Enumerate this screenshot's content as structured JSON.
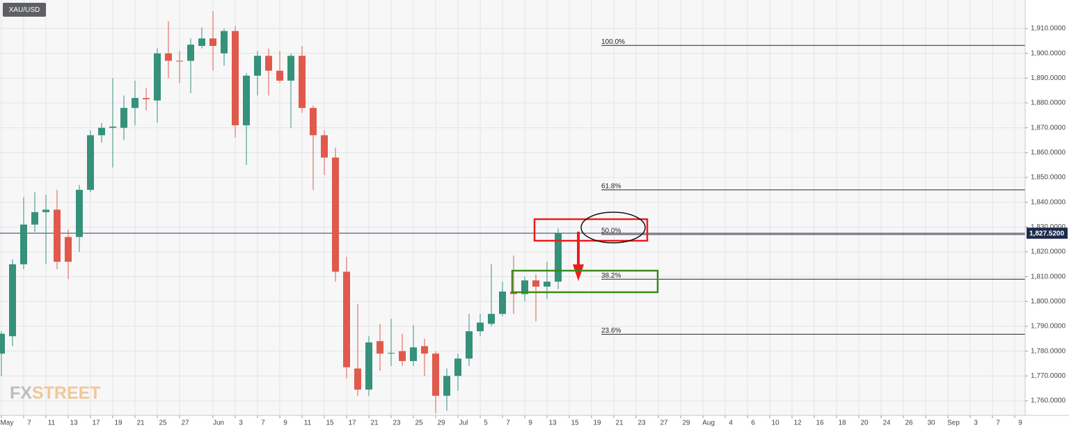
{
  "chart_data": {
    "type": "candlestick",
    "title": "XAU/USD",
    "watermark": [
      "FX",
      "STREET"
    ],
    "categories": [
      "May",
      null,
      "7",
      null,
      "11",
      null,
      "13",
      null,
      "17",
      null,
      "19",
      null,
      "21",
      null,
      "25",
      null,
      "27",
      null,
      null,
      "Jun",
      null,
      "3",
      null,
      "7",
      null,
      "9",
      null,
      "11",
      null,
      "15",
      null,
      "17",
      null,
      "21",
      null,
      "23",
      null,
      "25",
      null,
      "29",
      null,
      "Jul",
      null,
      "5",
      null,
      "7",
      null,
      "9",
      null,
      "13",
      null,
      "15",
      null,
      "19",
      null,
      "21",
      null,
      "23",
      null,
      "27",
      null,
      "29",
      null,
      "Aug",
      null,
      "4",
      null,
      "6",
      null,
      "10",
      null,
      "12",
      null,
      "16",
      null,
      "18",
      null,
      "20",
      null,
      "24",
      null,
      "26",
      null,
      "30",
      null,
      "Sep",
      null,
      "3",
      null,
      "7",
      null,
      "9"
    ],
    "open": [
      1779,
      1786,
      1815,
      1831,
      1836,
      1837,
      1826,
      1826,
      1845,
      1867,
      1870,
      1870,
      1878,
      1882,
      1881,
      1900,
      1897,
      1897,
      1903,
      1906,
      1900,
      1909,
      1871,
      1891,
      1899,
      1893,
      1889,
      1899,
      1878,
      1867,
      1858,
      1812,
      1773,
      1764.5,
      1784,
      1779,
      1780,
      1776,
      1782,
      1779,
      1762,
      1770,
      1777,
      1788,
      1791,
      1795,
      1804,
      1803,
      1808.5,
      1806,
      1808,
      null,
      null,
      null,
      null,
      null,
      null,
      null,
      null,
      null,
      null,
      null,
      null,
      null,
      null,
      null,
      null,
      null,
      null,
      null,
      null,
      null,
      null,
      null,
      null,
      null,
      null,
      null,
      null,
      null,
      null,
      null,
      null,
      null,
      null,
      null,
      null,
      null,
      null,
      null,
      null,
      null
    ],
    "high": [
      1788,
      1817,
      1842,
      1844,
      1843,
      1845,
      1829,
      1847,
      1869,
      1872,
      1890,
      1883,
      1889,
      1886,
      1902,
      1913,
      1901,
      1906,
      1910.5,
      1917,
      1910,
      1911,
      1892,
      1901,
      1902,
      1901,
      1900,
      1903,
      1879,
      1869,
      1862,
      1818,
      1799,
      1786,
      1791,
      1793,
      1787,
      1790.5,
      1785,
      1780,
      1773,
      1779,
      1795,
      1795,
      1815,
      1808,
      1818.5,
      1810,
      1811,
      1816,
      1829.5,
      null,
      null,
      null,
      null,
      null,
      null,
      null,
      null,
      null,
      null,
      null,
      null,
      null,
      null,
      null,
      null,
      null,
      null,
      null,
      null,
      null,
      null,
      null,
      null,
      null,
      null,
      null,
      null,
      null,
      null,
      null,
      null,
      null,
      null,
      null,
      null,
      null,
      null,
      null,
      null,
      null
    ],
    "low": [
      1770,
      1782,
      1813,
      1828,
      1815,
      1813,
      1809,
      1820,
      1844,
      1864,
      1854,
      1865,
      1871,
      1877,
      1872,
      1890,
      1888,
      1884,
      1902,
      1893,
      1895,
      1866,
      1855,
      1883,
      1883,
      1888,
      1870,
      1876,
      1845,
      1851,
      1808,
      1769,
      1762,
      1762,
      1772,
      1774,
      1774,
      1774,
      1770,
      1755,
      1756,
      1764,
      1774,
      1786,
      1790,
      1794,
      1795,
      1800,
      1792,
      1801,
      1805,
      null,
      null,
      null,
      null,
      null,
      null,
      null,
      null,
      null,
      null,
      null,
      null,
      null,
      null,
      null,
      null,
      null,
      null,
      null,
      null,
      null,
      null,
      null,
      null,
      null,
      null,
      null,
      null,
      null,
      null,
      null,
      null,
      null,
      null,
      null,
      null,
      null,
      null,
      null,
      null,
      null
    ],
    "close": [
      1787,
      1815,
      1831,
      1836,
      1837,
      1816,
      1816,
      1845,
      1867,
      1870,
      1870.5,
      1878,
      1882,
      1881.5,
      1900,
      1897,
      1896.7,
      1903.5,
      1906,
      1903,
      1909,
      1871,
      1891,
      1899,
      1893,
      1889,
      1899,
      1878,
      1867,
      1858,
      1812,
      1773.5,
      1764.5,
      1783.5,
      1779,
      1779.3,
      1776,
      1781.5,
      1779,
      1762,
      1770,
      1777,
      1788,
      1791.5,
      1795,
      1804,
      1803,
      1808.5,
      1806,
      1808,
      1827.52,
      null,
      null,
      null,
      null,
      null,
      null,
      null,
      null,
      null,
      null,
      null,
      null,
      null,
      null,
      null,
      null,
      null,
      null,
      null,
      null,
      null,
      null,
      null,
      null,
      null,
      null,
      null,
      null,
      null,
      null,
      null,
      null,
      null,
      null,
      null,
      null,
      null,
      null,
      null,
      null,
      null
    ],
    "up_color": "#35917a",
    "down_color": "#e0594a",
    "ylim": [
      1754.1,
      1921.5
    ],
    "yticks": [
      {
        "value": 1760,
        "label": "1,760.0000"
      },
      {
        "value": 1770,
        "label": "1,770.0000"
      },
      {
        "value": 1780,
        "label": "1,780.0000"
      },
      {
        "value": 1790,
        "label": "1,790.0000"
      },
      {
        "value": 1800,
        "label": "1,800.0000"
      },
      {
        "value": 1810,
        "label": "1,810.0000"
      },
      {
        "value": 1820,
        "label": "1,820.0000"
      },
      {
        "value": 1830,
        "label": "1,830.0000"
      },
      {
        "value": 1840,
        "label": "1,840.0000"
      },
      {
        "value": 1850,
        "label": "1,850.0000"
      },
      {
        "value": 1860,
        "label": "1,860.0000"
      },
      {
        "value": 1870,
        "label": "1,870.0000"
      },
      {
        "value": 1880,
        "label": "1,880.0000"
      },
      {
        "value": 1890,
        "label": "1,890.0000"
      },
      {
        "value": 1900,
        "label": "1,900.0000"
      },
      {
        "value": 1910,
        "label": "1,910.0000"
      }
    ],
    "grid": true,
    "fib_levels": [
      {
        "value": 1903.2,
        "label": "100.0%"
      },
      {
        "value": 1845.0,
        "label": "61.8%"
      },
      {
        "value": 1827.0,
        "label": "50.0%"
      },
      {
        "value": 1809.0,
        "label": "38.2%"
      },
      {
        "value": 1786.8,
        "label": "23.6%"
      }
    ],
    "last_price": {
      "value": 1827.52,
      "label": "1,827.5200"
    }
  }
}
